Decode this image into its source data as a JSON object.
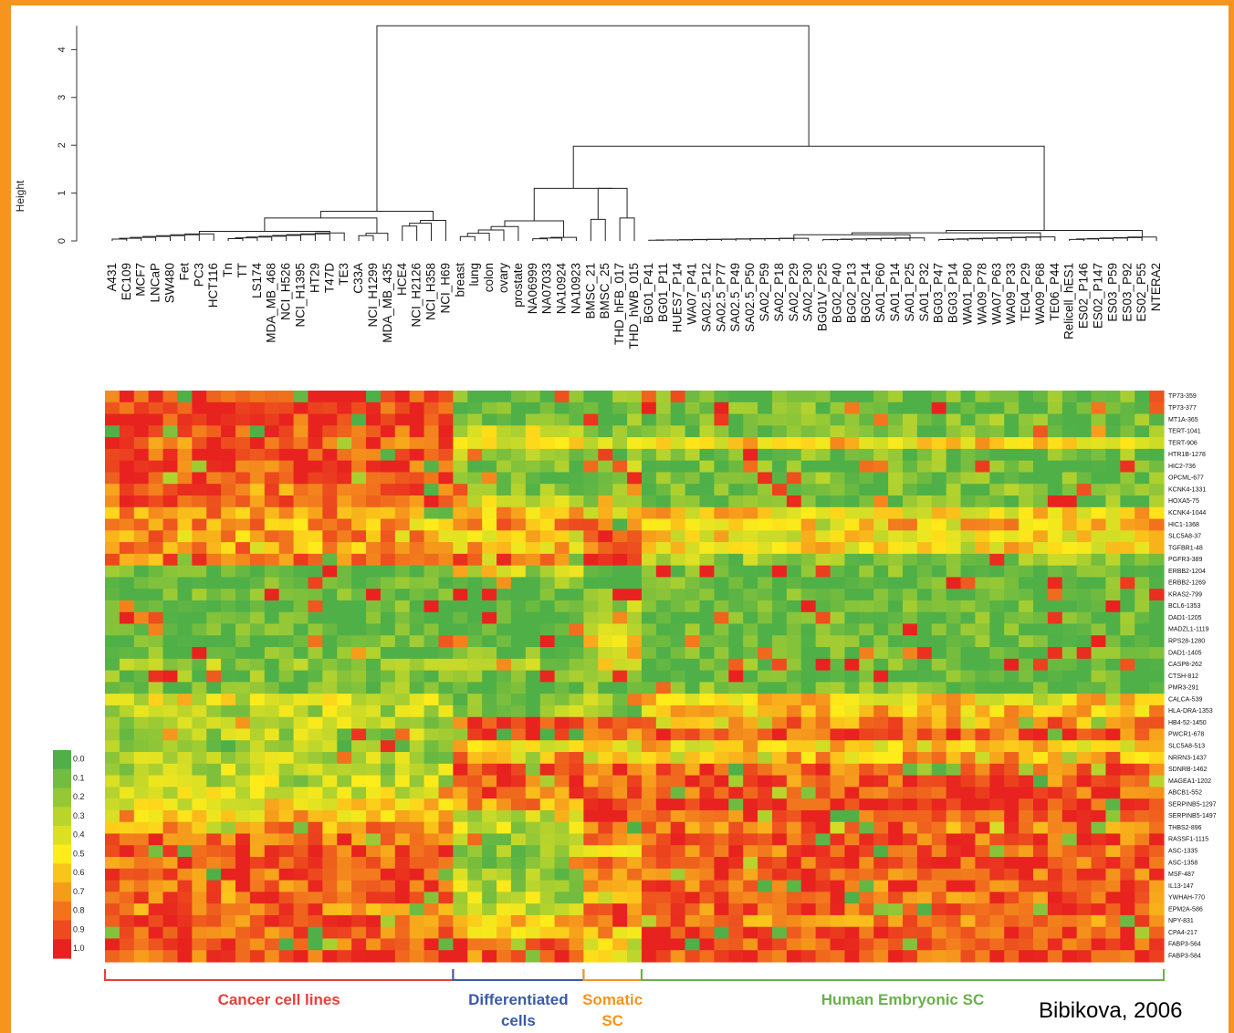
{
  "chart_data": {
    "type": "heatmap",
    "dendrogram": {
      "ylabel": "Height",
      "yticks": [
        "0",
        "1",
        "2",
        "3",
        "4"
      ],
      "ylim": [
        0,
        4.5
      ]
    },
    "samples": [
      "A431",
      "EC109",
      "MCF7",
      "LNCaP",
      "SW480",
      "Fet",
      "PC3",
      "HCT116",
      "Tn",
      "TT",
      "LS174",
      "MDA_MB_468",
      "NCI_H526",
      "NCI_H1395",
      "HT29",
      "T47D",
      "TE3",
      "C33A",
      "NCI_H1299",
      "MDA_MB_435",
      "HCE4",
      "NCI_H2126",
      "NCI_H358",
      "NCI_H69",
      "breast",
      "lung",
      "colon",
      "ovary",
      "prostate",
      "NA06999",
      "NA07033",
      "NA10924",
      "NA10923",
      "BMSC_21",
      "BMSC_25",
      "THD_hFB_017",
      "THD_hWB_015",
      "BG01_P41",
      "BG01_P11",
      "HUES7_P14",
      "WA07_P41",
      "SA02.5_P12",
      "SA02.5_P77",
      "SA02.5_P49",
      "SA02.5_P50",
      "SA02_P59",
      "SA02_P18",
      "SA02_P29",
      "SA02_P30",
      "BG01V_P25",
      "BG02_P40",
      "BG02_P13",
      "BG02_P14",
      "SA01_P60",
      "SA01_P14",
      "SA01_P25",
      "SA01_P32",
      "BG03_P47",
      "BG03_P14",
      "WA01_P80",
      "WA09_P78",
      "WA07_P63",
      "WA09_P33",
      "TE04_P29",
      "WA09_P68",
      "TE06_P44",
      "Relicell_hES1",
      "ES02_P146",
      "ES02_P147",
      "ES03_P59",
      "ES03_P92",
      "ES02_P55",
      "NTERA2"
    ],
    "genes": [
      "TP73-359",
      "TP73-377",
      "MT1A-365",
      "TERT-1041",
      "TERT-906",
      "HTR1B-1278",
      "HIC2-736",
      "OPCML-677",
      "KCNK4-1331",
      "HOXA5-75",
      "KCNK4-1044",
      "HIC1-1368",
      "SLC5A8-37",
      "TGFBR1-48",
      "PGFR3-389",
      "ERBB2-1204",
      "ERBB2-1269",
      "KRAS2-799",
      "BCL6-1353",
      "DAD1-1205",
      "MADZL1-1119",
      "RPS28-1280",
      "DAD1-1405",
      "CASP8-262",
      "CTSH-812",
      "PMR3-291",
      "CALCA-539",
      "HLA-DRA-1353",
      "HB4-52-1450",
      "PWCR1-678",
      "SLC5A8-513",
      "NRRN3-1437",
      "SDNRB-1462",
      "MAGEA1-1202",
      "ABCB1-552",
      "SERPINB5-1297",
      "SERPINB5-1497",
      "THBS2-896",
      "RASSF1-1115",
      "ASC-1335",
      "ASC-1358",
      "MSF-487",
      "IL13-147",
      "YWHAH-770",
      "EPM2A-586",
      "NPY-831",
      "CPA4-217",
      "FABP3-564",
      "FABP3-584"
    ],
    "groups": [
      {
        "label": "Cancer cell lines",
        "color": "#e8403a",
        "start": 0,
        "end": 23
      },
      {
        "label": "Differentiated cells",
        "color": "#3c5aa8",
        "start": 24,
        "end": 32
      },
      {
        "label": "Somatic SC",
        "color": "#f7941d",
        "start": 33,
        "end": 36
      },
      {
        "label": "Human Embryonic SC",
        "color": "#6ab04c",
        "start": 37,
        "end": 72
      }
    ],
    "colorscale": {
      "ticks": [
        "0.0",
        "0.1",
        "0.2",
        "0.3",
        "0.4",
        "0.5",
        "0.6",
        "0.7",
        "0.8",
        "0.9",
        "1.0"
      ],
      "low_color": "#4fb048",
      "mid_color": "#ffec1a",
      "high_color": "#e8231f"
    },
    "block_levels": [
      [
        0.95,
        0.05,
        0.1,
        0.05
      ],
      [
        0.95,
        0.1,
        0.1,
        0.08
      ],
      [
        0.95,
        0.12,
        0.1,
        0.1
      ],
      [
        0.9,
        0.4,
        0.15,
        0.1
      ],
      [
        0.85,
        0.5,
        0.4,
        0.55
      ],
      [
        0.9,
        0.2,
        0.15,
        0.1
      ],
      [
        0.9,
        0.15,
        0.3,
        0.1
      ],
      [
        0.9,
        0.15,
        0.2,
        0.1
      ],
      [
        0.8,
        0.15,
        0.15,
        0.1
      ],
      [
        0.85,
        0.4,
        0.3,
        0.1
      ],
      [
        0.75,
        0.6,
        0.5,
        0.55
      ],
      [
        0.7,
        0.7,
        0.9,
        0.6
      ],
      [
        0.7,
        0.5,
        0.9,
        0.5
      ],
      [
        0.7,
        0.6,
        0.9,
        0.55
      ],
      [
        0.8,
        0.8,
        0.95,
        0.2
      ],
      [
        0.05,
        0.3,
        0.05,
        0.05
      ],
      [
        0.05,
        0.1,
        0.05,
        0.05
      ],
      [
        0.05,
        0.05,
        0.1,
        0.05
      ],
      [
        0.05,
        0.05,
        0.2,
        0.05
      ],
      [
        0.05,
        0.05,
        0.4,
        0.05
      ],
      [
        0.05,
        0.05,
        0.45,
        0.05
      ],
      [
        0.05,
        0.05,
        0.6,
        0.05
      ],
      [
        0.1,
        0.1,
        0.3,
        0.05
      ],
      [
        0.2,
        0.2,
        0.4,
        0.1
      ],
      [
        0.1,
        0.05,
        0.1,
        0.05
      ],
      [
        0.1,
        0.05,
        0.1,
        0.1
      ],
      [
        0.4,
        0.1,
        0.2,
        0.55
      ],
      [
        0.3,
        0.2,
        0.2,
        0.6
      ],
      [
        0.3,
        0.85,
        0.8,
        0.75
      ],
      [
        0.25,
        0.95,
        0.85,
        0.85
      ],
      [
        0.2,
        0.5,
        0.5,
        0.55
      ],
      [
        0.25,
        0.7,
        0.6,
        0.7
      ],
      [
        0.3,
        0.9,
        0.9,
        0.85
      ],
      [
        0.3,
        0.9,
        0.85,
        0.85
      ],
      [
        0.35,
        0.8,
        0.9,
        0.9
      ],
      [
        0.5,
        0.7,
        0.95,
        0.95
      ],
      [
        0.6,
        0.35,
        0.9,
        0.9
      ],
      [
        0.75,
        0.3,
        0.8,
        0.8
      ],
      [
        0.85,
        0.25,
        0.85,
        0.85
      ],
      [
        0.85,
        0.2,
        0.6,
        0.85
      ],
      [
        0.85,
        0.2,
        0.7,
        0.85
      ],
      [
        0.85,
        0.2,
        0.8,
        0.85
      ],
      [
        0.8,
        0.3,
        0.7,
        0.85
      ],
      [
        0.8,
        0.3,
        0.5,
        0.85
      ],
      [
        0.8,
        0.4,
        0.85,
        0.85
      ],
      [
        0.85,
        0.55,
        0.9,
        0.8
      ],
      [
        0.85,
        0.6,
        0.6,
        0.9
      ],
      [
        0.9,
        0.8,
        0.45,
        0.9
      ],
      [
        0.9,
        0.85,
        0.5,
        0.9
      ]
    ]
  },
  "credit": "Bibikova, 2006"
}
